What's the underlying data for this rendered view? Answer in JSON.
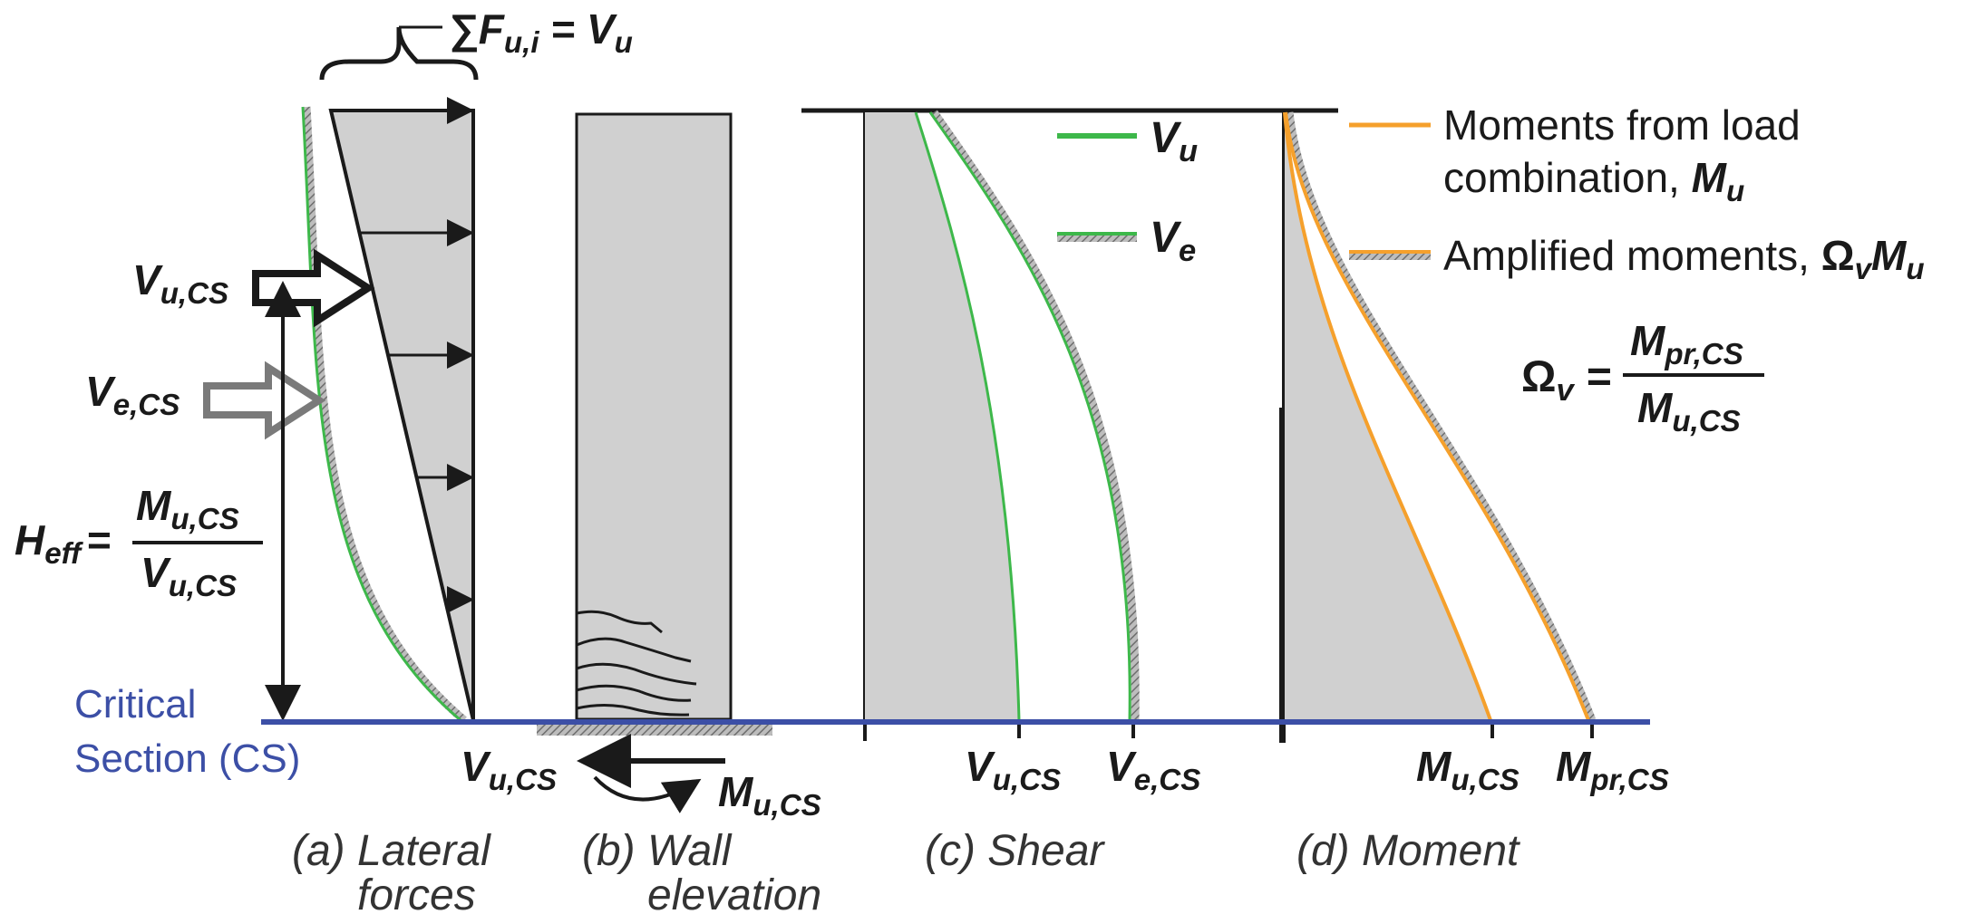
{
  "colors": {
    "shade": "#d0d0d0",
    "line": "#1a1a1a",
    "green": "#3db84a",
    "orange": "#f5a02c",
    "blue": "#3c4fa6",
    "hatch": "#8c8c8c",
    "arrow_gray": "#7a7a7a"
  },
  "labels": {
    "sum_lhs": "∑F",
    "sum_sub": "u,i",
    "sum_eq": " = V",
    "sum_rhs_sub": "u",
    "vucs_main": "V",
    "vucs_sub": "u,CS",
    "vecs_main": "V",
    "vecs_sub": "e,CS",
    "heff_main": "H",
    "heff_sub": "eff",
    "heff_eq": "=",
    "mucs_main": "M",
    "mucs_sub": "u,CS",
    "mprcs_main": "M",
    "mprcs_sub": "pr,CS",
    "critical_line1": "Critical",
    "critical_line2": "Section (CS)",
    "omega": "Ω",
    "omega_sub": "v",
    "eq": " = "
  },
  "legend": {
    "vu_main": "V",
    "vu_sub": "u",
    "ve_main": "V",
    "ve_sub": "e",
    "mu_line1": "Moments from load",
    "mu_line2": "combination, ",
    "mu_sym": "M",
    "mu_sub": "u",
    "amp_text": "Amplified moments, ",
    "amp_omega": "Ω",
    "amp_omega_sub": "v",
    "amp_m": "M",
    "amp_m_sub": "u"
  },
  "captions": {
    "a_line1": "(a) Lateral",
    "a_line2": "forces",
    "b_line1": "(b) Wall",
    "b_line2": "elevation",
    "c_line1": "(c) Shear",
    "d_line1": "(d) Moment"
  }
}
